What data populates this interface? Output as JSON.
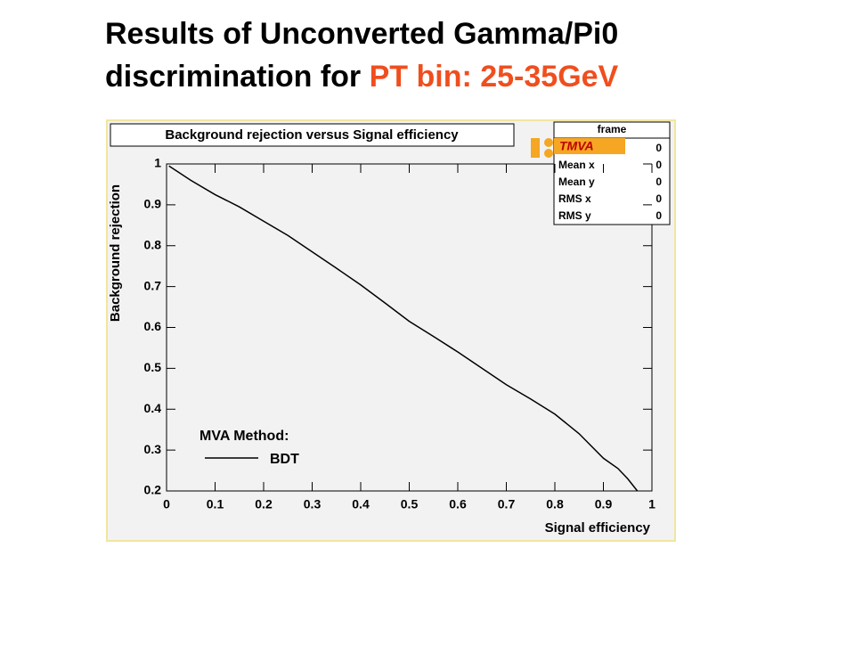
{
  "slide_title": {
    "line1": "Results of Unconverted Gamma/Pi0",
    "line2": "discrimination for ",
    "highlight": "PT bin: 25-35GeV"
  },
  "chart_data": {
    "type": "line",
    "title": "Background rejection versus Signal efficiency",
    "xlabel": "Signal efficiency",
    "ylabel": "Background rejection",
    "xlim": [
      0,
      1
    ],
    "ylim": [
      0.2,
      1
    ],
    "xticks": [
      0,
      0.1,
      0.2,
      0.3,
      0.4,
      0.5,
      0.6,
      0.7,
      0.8,
      0.9,
      1
    ],
    "yticks": [
      0.2,
      0.3,
      0.4,
      0.5,
      0.6,
      0.7,
      0.8,
      0.9,
      1
    ],
    "legend_title": "MVA Method:",
    "series": [
      {
        "name": "BDT",
        "color": "#000000",
        "x": [
          0.005,
          0.05,
          0.1,
          0.15,
          0.2,
          0.25,
          0.3,
          0.35,
          0.4,
          0.45,
          0.5,
          0.55,
          0.6,
          0.65,
          0.7,
          0.75,
          0.8,
          0.85,
          0.9,
          0.93,
          0.95,
          0.97
        ],
        "values": [
          0.995,
          0.96,
          0.925,
          0.895,
          0.86,
          0.825,
          0.785,
          0.745,
          0.704,
          0.66,
          0.615,
          0.578,
          0.54,
          0.5,
          0.46,
          0.425,
          0.388,
          0.34,
          0.28,
          0.255,
          0.23,
          0.2
        ]
      }
    ],
    "logo": "TMVA",
    "stats": {
      "title": "frame",
      "names": [
        null,
        "Mean x",
        "Mean y",
        "RMS x",
        "RMS y"
      ],
      "values": [
        0,
        0,
        0,
        0,
        0
      ]
    }
  }
}
